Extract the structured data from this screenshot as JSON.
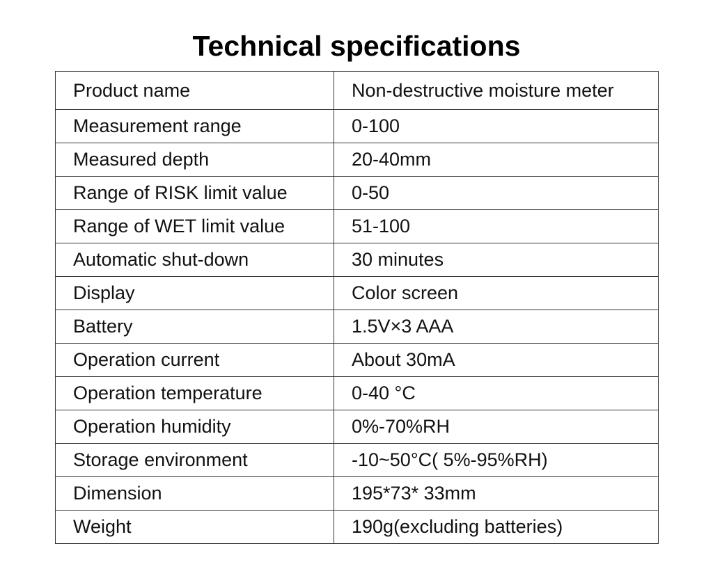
{
  "title": "Technical specifications",
  "specs": [
    {
      "label": "Product name",
      "value": "Non-destructive moisture meter"
    },
    {
      "label": "Measurement range",
      "value": "0-100"
    },
    {
      "label": "Measured depth",
      "value": "20-40mm"
    },
    {
      "label": "Range of RISK limit value",
      "value": "0-50"
    },
    {
      "label": "Range of WET limit value",
      "value": "51-100"
    },
    {
      "label": "Automatic shut-down",
      "value": "30 minutes"
    },
    {
      "label": "Display",
      "value": "Color screen"
    },
    {
      "label": "Battery",
      "value": "1.5V×3 AAA"
    },
    {
      "label": "Operation current",
      "value": "About 30mA"
    },
    {
      "label": "Operation temperature",
      "value": "0-40 °C"
    },
    {
      "label": "Operation humidity",
      "value": "0%-70%RH"
    },
    {
      "label": "Storage environment",
      "value": "-10~50°C( 5%-95%RH)"
    },
    {
      "label": "Dimension",
      "value": "195*73* 33mm"
    },
    {
      "label": "Weight",
      "value": "190g(excluding batteries)"
    }
  ],
  "colors": {
    "text": "#111111",
    "border": "#333333",
    "background": "#ffffff"
  }
}
